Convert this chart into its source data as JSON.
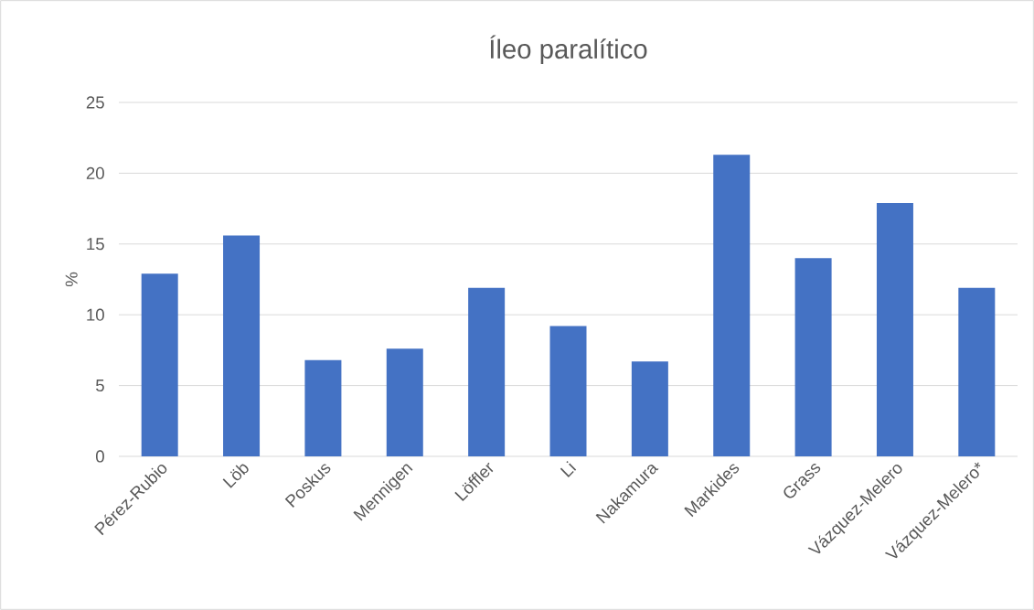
{
  "chart_data": {
    "type": "bar",
    "title": "Íleo paralítico",
    "ylabel": "%",
    "categories": [
      "Pérez-Rubio",
      "Löb",
      "Poskus",
      "Mennigen",
      "Löffler",
      "Li",
      "Nakamura",
      "Markides",
      "Grass",
      "Vázquez-Melero",
      "Vázquez-Melero*"
    ],
    "values": [
      12.9,
      15.6,
      6.8,
      7.6,
      11.9,
      9.2,
      6.7,
      21.3,
      14.0,
      17.9,
      11.9
    ],
    "color": "#4472c4",
    "ylim": [
      0,
      25
    ],
    "yticks": [
      0,
      5,
      10,
      15,
      20,
      25
    ],
    "grid": "y"
  }
}
